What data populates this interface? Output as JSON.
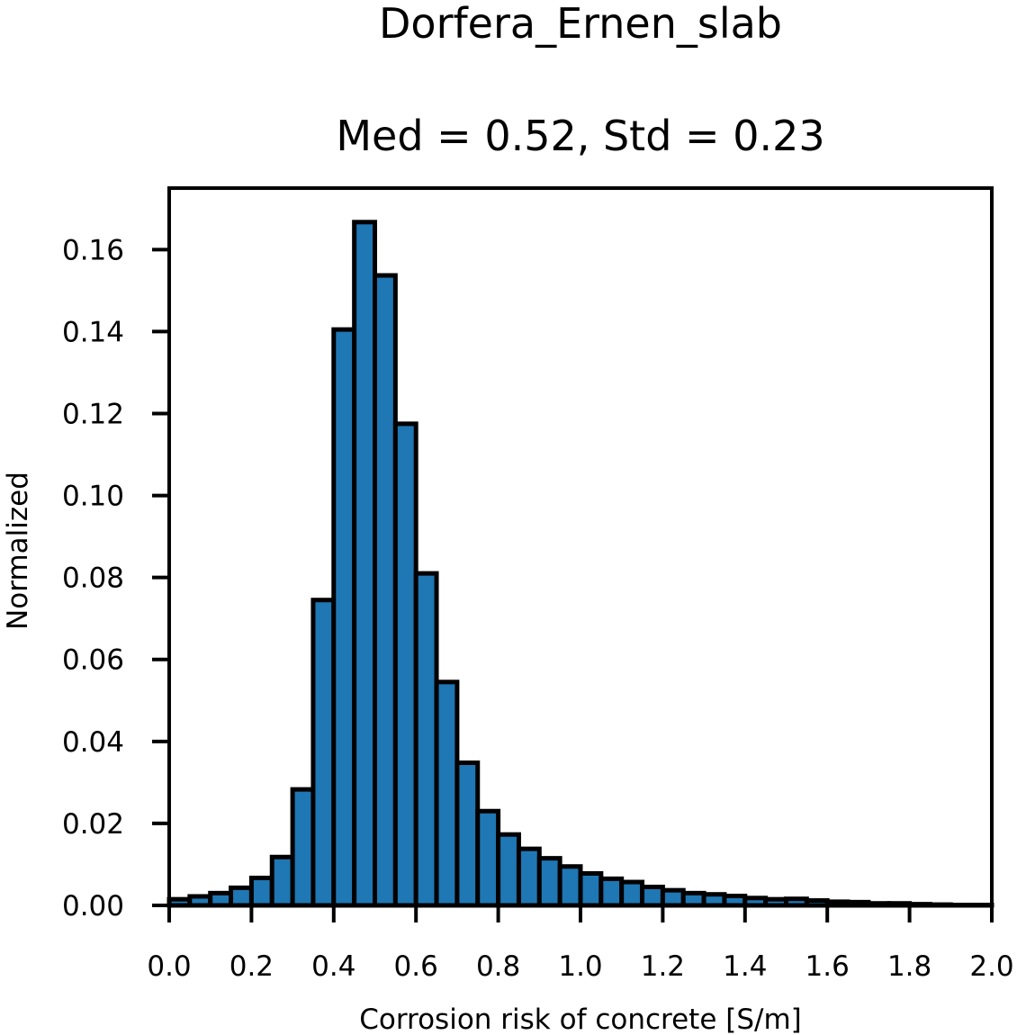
{
  "chart_data": {
    "type": "bar",
    "title": "Dorfera_Ernen_slab",
    "subtitle": "Med = 0.52, Std = 0.23",
    "xlabel": "Corrosion risk of concrete [S/m]",
    "ylabel": "Normalized",
    "xlim": [
      0.0,
      2.0
    ],
    "ylim": [
      0.0,
      0.175
    ],
    "xticks": [
      "0.0",
      "0.2",
      "0.4",
      "0.6",
      "0.8",
      "1.0",
      "1.2",
      "1.4",
      "1.6",
      "1.8",
      "2.0"
    ],
    "yticks": [
      "0.00",
      "0.02",
      "0.04",
      "0.06",
      "0.08",
      "0.10",
      "0.12",
      "0.14",
      "0.16"
    ],
    "bin_width": 0.05,
    "bin_starts": [
      0.0,
      0.05,
      0.1,
      0.15,
      0.2,
      0.25,
      0.3,
      0.35,
      0.4,
      0.45,
      0.5,
      0.55,
      0.6,
      0.65,
      0.7,
      0.75,
      0.8,
      0.85,
      0.9,
      0.95,
      1.0,
      1.05,
      1.1,
      1.15,
      1.2,
      1.25,
      1.3,
      1.35,
      1.4,
      1.45,
      1.5,
      1.55,
      1.6,
      1.65,
      1.7,
      1.75,
      1.8,
      1.85,
      1.9,
      1.95
    ],
    "values": [
      0.0015,
      0.0022,
      0.003,
      0.0043,
      0.0067,
      0.0118,
      0.0283,
      0.0745,
      0.1405,
      0.1667,
      0.1537,
      0.1175,
      0.081,
      0.0545,
      0.0348,
      0.023,
      0.0173,
      0.0138,
      0.0115,
      0.0095,
      0.0078,
      0.0065,
      0.0057,
      0.0045,
      0.0037,
      0.003,
      0.0027,
      0.0023,
      0.0018,
      0.0015,
      0.0016,
      0.0012,
      0.0009,
      0.0008,
      0.0005,
      0.0005,
      0.0003,
      0.0002,
      0.0001,
      0.0001
    ],
    "bar_color": "#1f77b4",
    "edge_color": "#000000",
    "grid": false
  }
}
